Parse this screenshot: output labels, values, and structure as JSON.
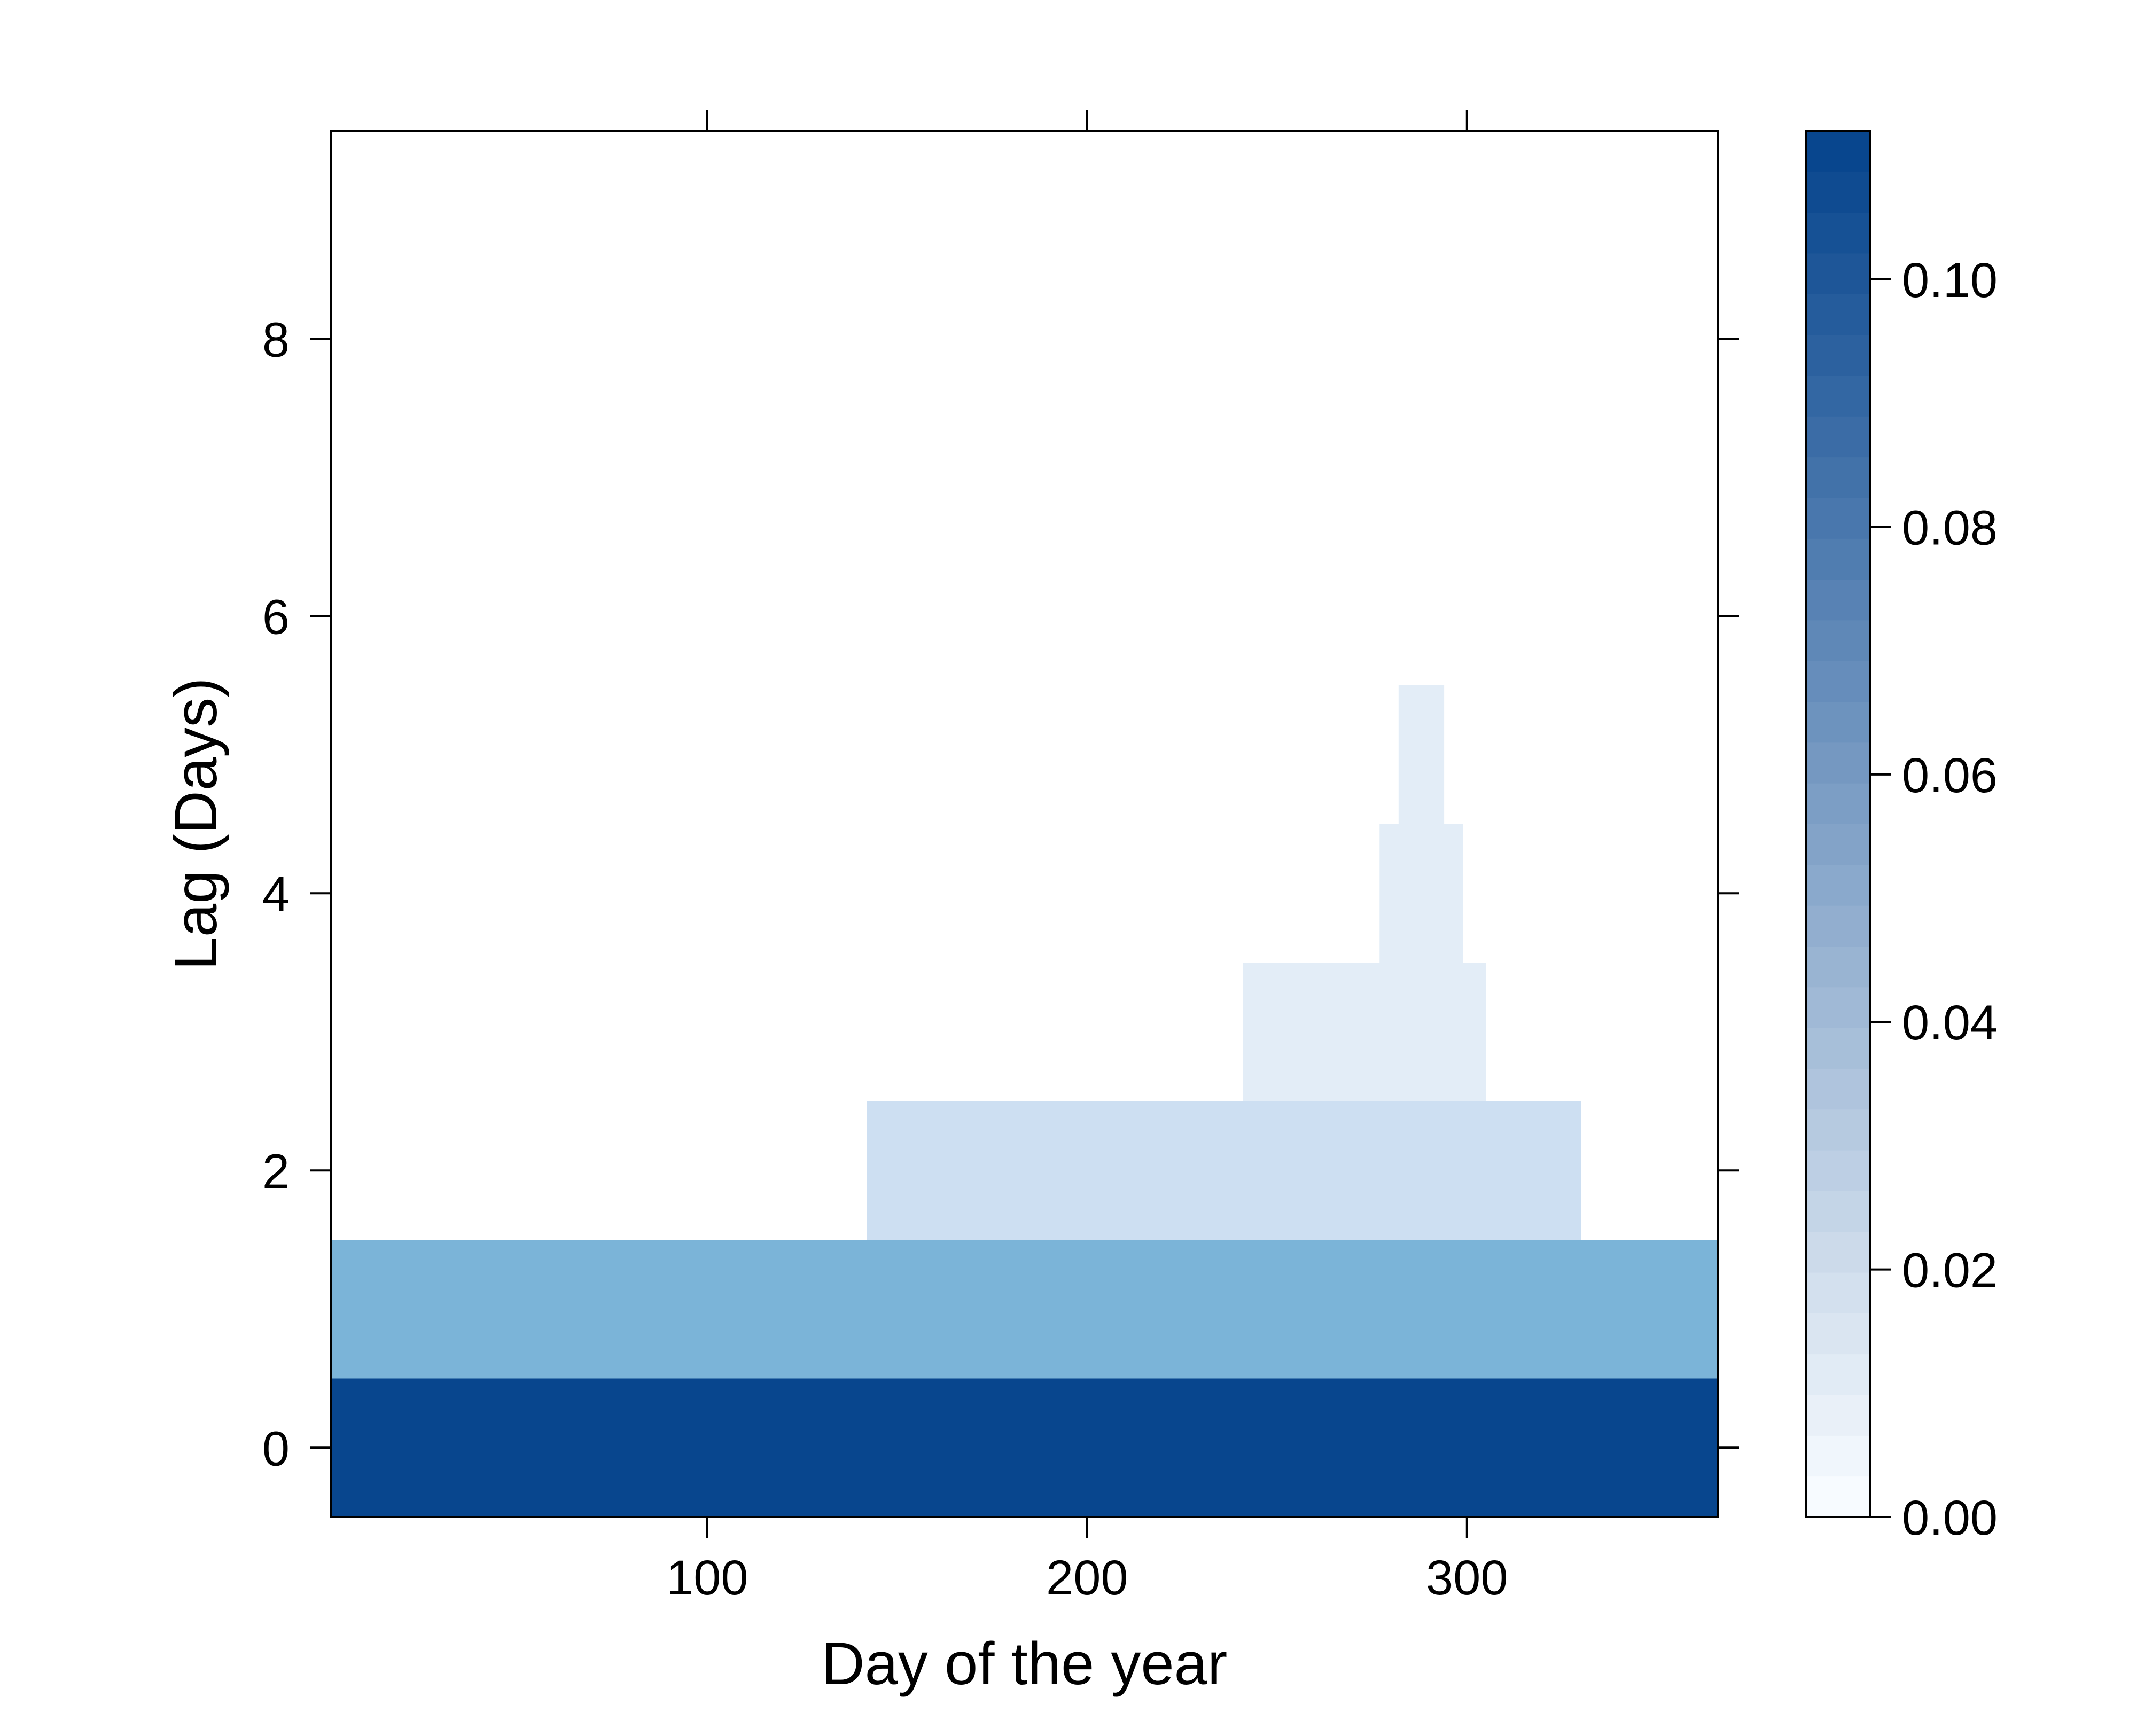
{
  "chart_data": {
    "type": "heatmap",
    "xlabel": "Day of the year",
    "ylabel": "Lag (Days)",
    "xlim": [
      1,
      366
    ],
    "ylim": [
      -0.5,
      9.5
    ],
    "x_ticks": [
      100,
      200,
      300
    ],
    "y_ticks": [
      0,
      2,
      4,
      6,
      8
    ],
    "grid": false,
    "colorbar": {
      "position": "right",
      "range": [
        0,
        0.112
      ],
      "ticks": [
        "0.00",
        "0.02",
        "0.04",
        "0.06",
        "0.08",
        "0.10"
      ],
      "tick_values": [
        0,
        0.02,
        0.04,
        0.06,
        0.08,
        0.1
      ],
      "low_color": "#f7fbff",
      "high_color": "#08468e"
    },
    "cells": [
      {
        "lag": 0,
        "x_from": 1,
        "x_to": 366,
        "value": 0.112,
        "color": "#08468e"
      },
      {
        "lag": 1,
        "x_from": 1,
        "x_to": 366,
        "value": 0.055,
        "color": "#7bb4d8"
      },
      {
        "lag": 2,
        "x_from": 142,
        "x_to": 330,
        "value": 0.025,
        "color": "#cddff2"
      },
      {
        "lag": 3,
        "x_from": 241,
        "x_to": 305,
        "value": 0.012,
        "color": "#e3edf7"
      },
      {
        "lag": 4,
        "x_from": 277,
        "x_to": 299,
        "value": 0.012,
        "color": "#e3edf7"
      },
      {
        "lag": 5,
        "x_from": 282,
        "x_to": 294,
        "value": 0.012,
        "color": "#e3edf7"
      }
    ]
  }
}
